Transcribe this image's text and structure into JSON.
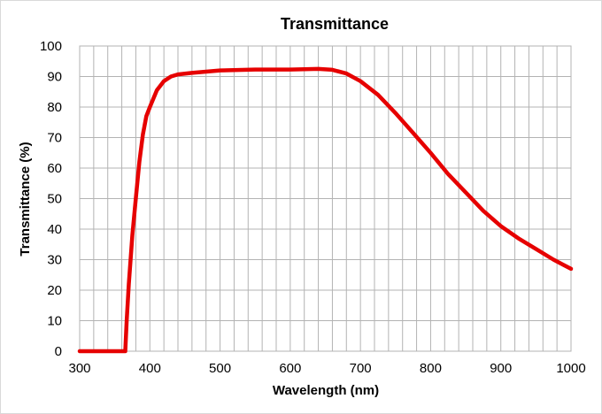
{
  "chart_data": {
    "type": "line",
    "title": "Transmittance",
    "xlabel": "Wavelength (nm)",
    "ylabel": "Transmittance (%)",
    "xlim": [
      300,
      1000
    ],
    "ylim": [
      0,
      100
    ],
    "x_ticks": [
      300,
      400,
      500,
      600,
      700,
      800,
      900,
      1000
    ],
    "y_ticks": [
      0,
      10,
      20,
      30,
      40,
      50,
      60,
      70,
      80,
      90,
      100
    ],
    "x_minor_step": 20,
    "grid": true,
    "legend": "none",
    "series": [
      {
        "color": "#e60000",
        "x": [
          300,
          365,
          367,
          370,
          375,
          380,
          385,
          390,
          395,
          400,
          410,
          420,
          430,
          440,
          460,
          500,
          550,
          600,
          640,
          660,
          680,
          700,
          725,
          750,
          775,
          800,
          825,
          850,
          875,
          900,
          925,
          950,
          975,
          1000
        ],
        "y": [
          0,
          0,
          10,
          22,
          38,
          50,
          62,
          71,
          77,
          80,
          85.5,
          88.5,
          90,
          90.7,
          91.2,
          92,
          92.3,
          92.3,
          92.5,
          92.2,
          91,
          88.5,
          84,
          78,
          71.5,
          65,
          58,
          52,
          46,
          41,
          37,
          33.5,
          30,
          27
        ]
      }
    ]
  }
}
